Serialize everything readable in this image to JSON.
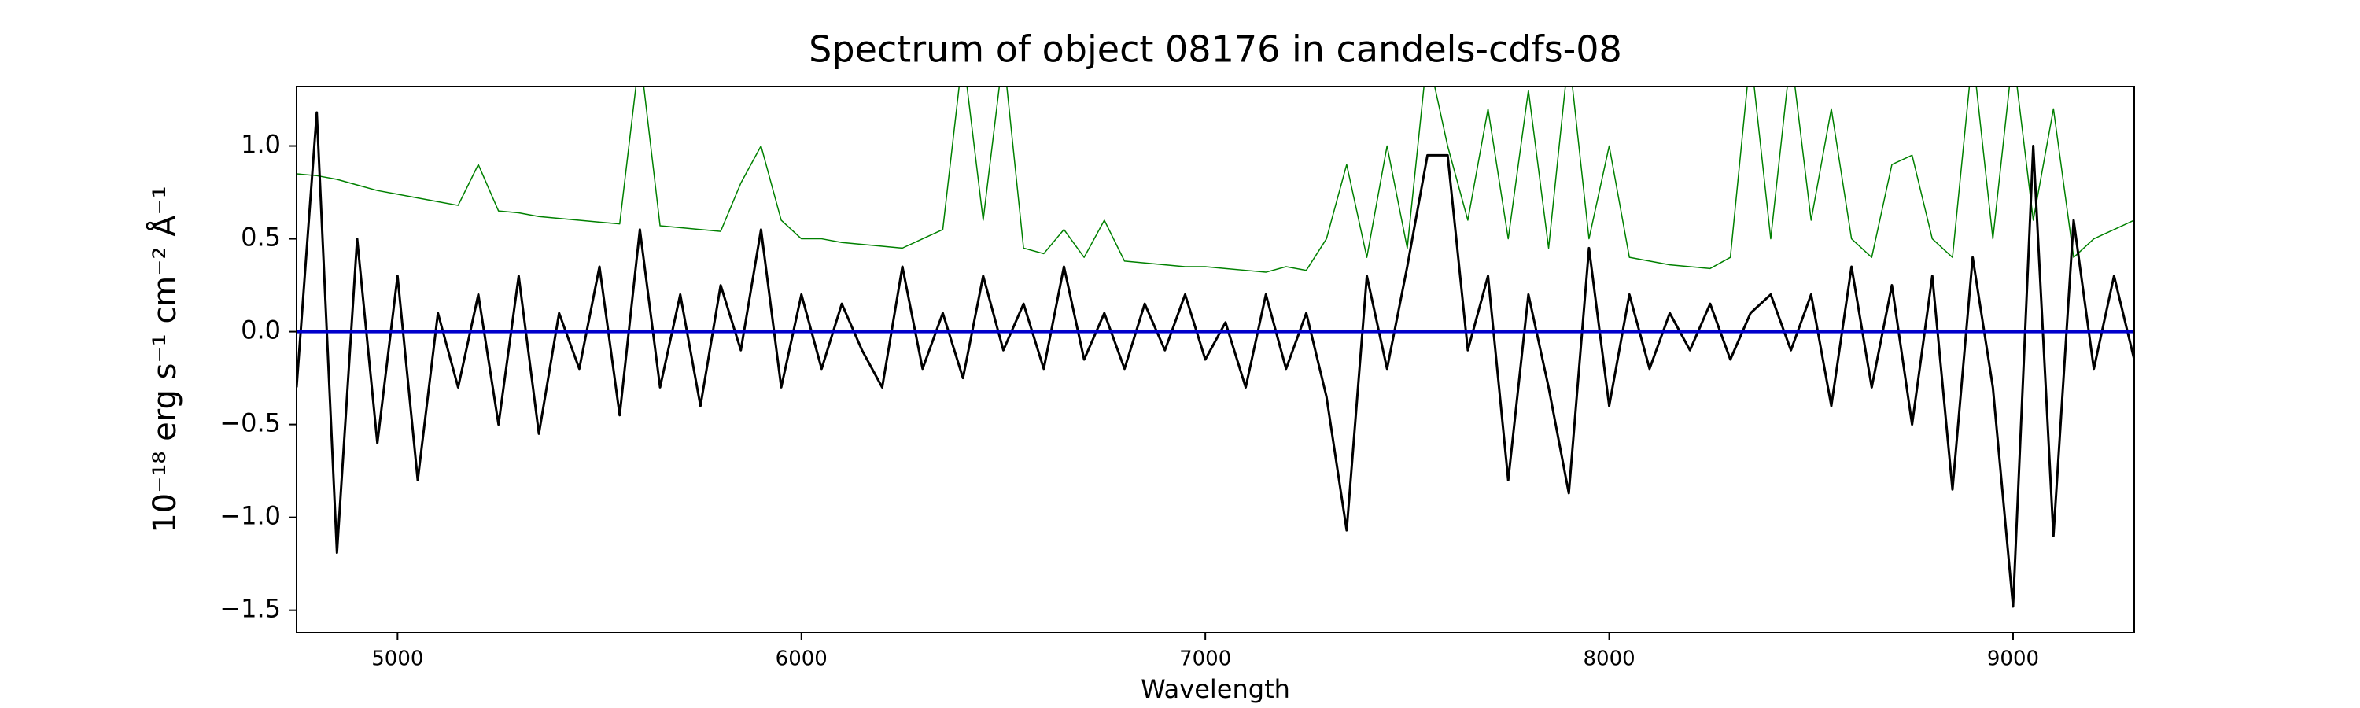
{
  "chart_data": {
    "type": "line",
    "title": "Spectrum of object 08176 in candels-cdfs-08",
    "xlabel": "Wavelength",
    "ylabel": "10⁻¹⁸ erg s⁻¹ cm⁻² Å⁻¹",
    "xlim": [
      4750,
      9300
    ],
    "ylim": [
      -1.62,
      1.32
    ],
    "xticks": [
      5000,
      6000,
      7000,
      8000,
      9000
    ],
    "yticks": [
      {
        "value": -1.5,
        "label": "−1.5"
      },
      {
        "value": -1.0,
        "label": "−1.0"
      },
      {
        "value": -0.5,
        "label": "−0.5"
      },
      {
        "value": 0.0,
        "label": "0.0"
      },
      {
        "value": 0.5,
        "label": "0.5"
      },
      {
        "value": 1.0,
        "label": "1.0"
      }
    ],
    "x": [
      4750,
      4800,
      4850,
      4900,
      4950,
      5000,
      5050,
      5100,
      5150,
      5200,
      5250,
      5300,
      5350,
      5400,
      5450,
      5500,
      5550,
      5600,
      5650,
      5700,
      5750,
      5800,
      5850,
      5900,
      5950,
      6000,
      6050,
      6100,
      6150,
      6200,
      6250,
      6300,
      6350,
      6400,
      6450,
      6500,
      6550,
      6600,
      6650,
      6700,
      6750,
      6800,
      6850,
      6900,
      6950,
      7000,
      7050,
      7100,
      7150,
      7200,
      7250,
      7300,
      7350,
      7400,
      7450,
      7500,
      7550,
      7600,
      7650,
      7700,
      7750,
      7800,
      7850,
      7900,
      7950,
      8000,
      8050,
      8100,
      8150,
      8200,
      8250,
      8300,
      8350,
      8400,
      8450,
      8500,
      8550,
      8600,
      8650,
      8700,
      8750,
      8800,
      8850,
      8900,
      8950,
      9000,
      9050,
      9100,
      9150,
      9200,
      9250,
      9300
    ],
    "series": [
      {
        "color": "#008000",
        "values": [
          0.85,
          0.84,
          0.82,
          0.79,
          0.76,
          0.74,
          0.72,
          0.7,
          0.68,
          0.9,
          0.65,
          0.64,
          0.62,
          0.61,
          0.6,
          0.59,
          0.58,
          1.5,
          0.57,
          0.56,
          0.55,
          0.54,
          0.8,
          1.0,
          0.6,
          0.5,
          0.5,
          0.48,
          0.47,
          0.46,
          0.45,
          0.5,
          0.55,
          1.5,
          0.6,
          1.5,
          0.45,
          0.42,
          0.55,
          0.4,
          0.6,
          0.38,
          0.37,
          0.36,
          0.35,
          0.35,
          0.34,
          0.33,
          0.32,
          0.35,
          0.33,
          0.5,
          0.9,
          0.4,
          1.0,
          0.45,
          1.5,
          1.0,
          0.6,
          1.2,
          0.5,
          1.3,
          0.45,
          1.5,
          0.5,
          1.0,
          0.4,
          0.38,
          0.36,
          0.35,
          0.34,
          0.4,
          1.5,
          0.5,
          1.5,
          0.6,
          1.2,
          0.5,
          0.4,
          0.9,
          0.95,
          0.5,
          0.4,
          1.5,
          0.5,
          1.5,
          0.6,
          1.2,
          0.4,
          0.5,
          0.55,
          0.6
        ]
      },
      {
        "color": "#000000",
        "values": [
          -0.3,
          1.18,
          -1.19,
          0.5,
          -0.6,
          0.3,
          -0.8,
          0.1,
          -0.3,
          0.2,
          -0.5,
          0.3,
          -0.55,
          0.1,
          -0.2,
          0.35,
          -0.45,
          0.55,
          -0.3,
          0.2,
          -0.4,
          0.25,
          -0.1,
          0.55,
          -0.3,
          0.2,
          -0.2,
          0.15,
          -0.1,
          -0.3,
          0.35,
          -0.2,
          0.1,
          -0.25,
          0.3,
          -0.1,
          0.15,
          -0.2,
          0.35,
          -0.15,
          0.1,
          -0.2,
          0.15,
          -0.1,
          0.2,
          -0.15,
          0.05,
          -0.3,
          0.2,
          -0.2,
          0.1,
          -0.35,
          -1.07,
          0.3,
          -0.2,
          0.35,
          0.95,
          0.95,
          -0.1,
          0.3,
          -0.8,
          0.2,
          -0.3,
          -0.87,
          0.45,
          -0.4,
          0.2,
          -0.2,
          0.1,
          -0.1,
          0.15,
          -0.15,
          0.1,
          0.2,
          -0.1,
          0.2,
          -0.4,
          0.35,
          -0.3,
          0.25,
          -0.5,
          0.3,
          -0.85,
          0.4,
          -0.3,
          -1.48,
          1.0,
          -1.1,
          0.6,
          -0.2,
          0.3,
          -0.15
        ]
      },
      {
        "color": "#0000cc",
        "x": [
          4750,
          9300
        ],
        "values": [
          0,
          0
        ]
      }
    ]
  }
}
